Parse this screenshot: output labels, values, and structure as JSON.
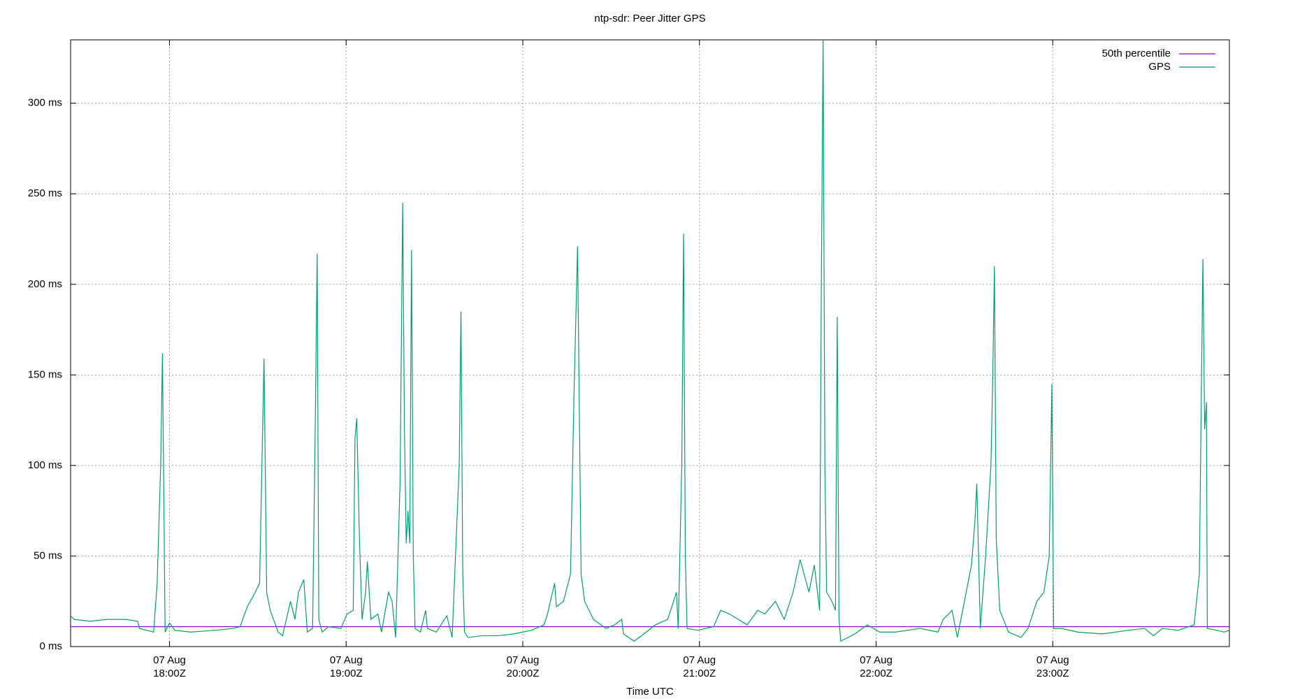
{
  "chart_data": {
    "type": "line",
    "title": "ntp-sdr: Peer Jitter GPS",
    "x_label": "Time UTC",
    "xlim": [
      17.44,
      24.0
    ],
    "xticks": [
      {
        "value": 18,
        "label": "07 Aug\n18:00Z"
      },
      {
        "value": 19,
        "label": "07 Aug\n19:00Z"
      },
      {
        "value": 20,
        "label": "07 Aug\n20:00Z"
      },
      {
        "value": 21,
        "label": "07 Aug\n21:00Z"
      },
      {
        "value": 22,
        "label": "07 Aug\n22:00Z"
      },
      {
        "value": 23,
        "label": "07 Aug\n23:00Z"
      }
    ],
    "ylim": [
      0,
      335
    ],
    "yticks": [
      {
        "value": 0,
        "label": "0 ms"
      },
      {
        "value": 50,
        "label": "50 ms"
      },
      {
        "value": 100,
        "label": "100 ms"
      },
      {
        "value": 150,
        "label": "150 ms"
      },
      {
        "value": 200,
        "label": "200 ms"
      },
      {
        "value": 250,
        "label": "250 ms"
      },
      {
        "value": 300,
        "label": "300 ms"
      }
    ],
    "grid": true,
    "legend": "top-right",
    "series": [
      {
        "name": "50th percentile",
        "color": "#9400d3",
        "x": [
          17.44,
          24.0
        ],
        "values": [
          11,
          11
        ]
      },
      {
        "name": "GPS",
        "color": "#009e73",
        "x": [
          17.44,
          17.46,
          17.55,
          17.65,
          17.75,
          17.82,
          17.83,
          17.91,
          17.93,
          17.95,
          17.96,
          17.97,
          17.975,
          18.0,
          18.03,
          18.12,
          18.26,
          18.36,
          18.4,
          18.44,
          18.475,
          18.51,
          18.535,
          18.55,
          18.57,
          18.615,
          18.64,
          18.685,
          18.71,
          18.73,
          18.76,
          18.78,
          18.81,
          18.826,
          18.836,
          18.845,
          18.864,
          18.9,
          18.97,
          19.005,
          19.04,
          19.05,
          19.06,
          19.075,
          19.09,
          19.11,
          19.12,
          19.14,
          19.18,
          19.2,
          19.24,
          19.26,
          19.28,
          19.305,
          19.32,
          19.33,
          19.34,
          19.35,
          19.36,
          19.37,
          19.38,
          19.39,
          19.42,
          19.45,
          19.46,
          19.51,
          19.57,
          19.6,
          19.64,
          19.65,
          19.66,
          19.67,
          19.69,
          19.77,
          19.86,
          19.95,
          20.05,
          20.12,
          20.14,
          20.18,
          20.19,
          20.23,
          20.27,
          20.29,
          20.31,
          20.33,
          20.35,
          20.4,
          20.47,
          20.52,
          20.56,
          20.57,
          20.63,
          20.7,
          20.75,
          20.82,
          20.87,
          20.88,
          20.9,
          20.91,
          20.92,
          20.93,
          20.99,
          21.08,
          21.12,
          21.17,
          21.22,
          21.27,
          21.33,
          21.37,
          21.43,
          21.48,
          21.53,
          21.57,
          21.62,
          21.65,
          21.68,
          21.69,
          21.7,
          21.71,
          21.72,
          21.75,
          21.77,
          21.78,
          21.79,
          21.8,
          21.88,
          21.95,
          22.02,
          22.11,
          22.25,
          22.35,
          22.38,
          22.43,
          22.46,
          22.51,
          22.54,
          22.56,
          22.57,
          22.59,
          22.62,
          22.65,
          22.66,
          22.67,
          22.68,
          22.7,
          22.75,
          22.82,
          22.86,
          22.91,
          22.95,
          22.98,
          22.995,
          23.005,
          23.05,
          23.14,
          23.28,
          23.43,
          23.52,
          23.57,
          23.62,
          23.71,
          23.8,
          23.83,
          23.84,
          23.85,
          23.86,
          23.87,
          23.875,
          23.93,
          23.97,
          24.0
        ],
        "values": [
          17,
          15,
          14,
          15,
          15,
          14,
          10,
          8,
          35,
          100,
          162,
          60,
          8,
          13,
          9,
          8,
          9,
          10,
          11,
          22,
          28,
          35,
          159,
          30,
          20,
          8,
          6,
          25,
          15,
          30,
          37,
          8,
          10,
          130,
          217,
          15,
          8,
          11,
          10,
          18,
          20,
          115,
          126,
          60,
          15,
          30,
          47,
          15,
          18,
          8,
          30,
          25,
          5,
          90,
          245,
          120,
          57,
          75,
          57,
          219,
          50,
          10,
          8,
          20,
          10,
          8,
          17,
          5,
          100,
          185,
          40,
          8,
          5,
          6,
          6,
          7,
          9,
          12,
          18,
          35,
          22,
          25,
          40,
          140,
          221,
          40,
          25,
          15,
          10,
          12,
          15,
          7,
          3,
          8,
          12,
          15,
          30,
          10,
          100,
          228,
          50,
          10,
          9,
          11,
          20,
          18,
          15,
          12,
          20,
          18,
          25,
          15,
          30,
          48,
          30,
          45,
          20,
          200,
          335,
          100,
          30,
          25,
          20,
          182,
          15,
          3,
          7,
          12,
          8,
          8,
          10,
          8,
          15,
          20,
          5,
          30,
          45,
          70,
          90,
          10,
          50,
          100,
          147,
          210,
          60,
          20,
          8,
          5,
          10,
          25,
          30,
          50,
          145,
          10,
          10,
          8,
          7,
          9,
          10,
          6,
          10,
          9,
          12,
          40,
          130,
          214,
          120,
          135,
          10,
          9,
          8,
          9
        ]
      }
    ]
  }
}
